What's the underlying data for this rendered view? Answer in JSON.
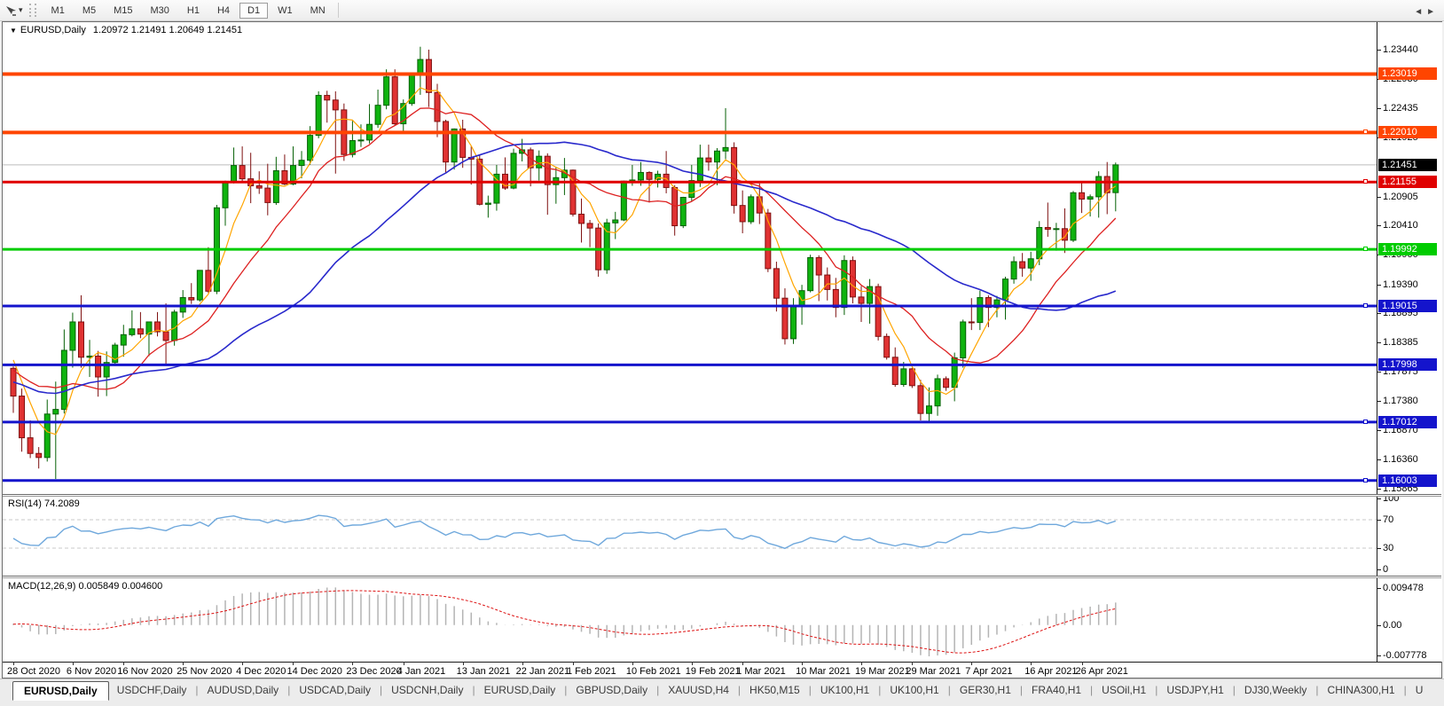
{
  "toolbar": {
    "dropdown_icon": "▾",
    "timeframes": [
      {
        "label": "M1",
        "active": false
      },
      {
        "label": "M5",
        "active": false
      },
      {
        "label": "M15",
        "active": false
      },
      {
        "label": "M30",
        "active": false
      },
      {
        "label": "H1",
        "active": false
      },
      {
        "label": "H4",
        "active": false
      },
      {
        "label": "D1",
        "active": true
      },
      {
        "label": "W1",
        "active": false
      },
      {
        "label": "MN",
        "active": false
      }
    ]
  },
  "chart": {
    "title": {
      "collapse_icon": "▼",
      "symbol": "EURUSD,Daily",
      "ohlc_values": "1.20972 1.21491 1.20649 1.21451"
    }
  },
  "chart_data": {
    "type": "candlestick",
    "symbol": "EURUSD",
    "timeframe": "Daily",
    "title": "EURUSD,Daily",
    "ohlc_display": {
      "open": "1.20972",
      "high": "1.21491",
      "low": "1.20649",
      "close": "1.21451"
    },
    "style": {
      "up_fill": "#0fb30f",
      "up_stroke": "#056005",
      "down_fill": "#e03232",
      "down_stroke": "#7d0f0f",
      "current_line": "#bcbcbc",
      "grid_dash": "#c8c8c8",
      "macd_bar": "#b4b4b4",
      "macd_signal": "#dd1111",
      "rsi_line": "#6fa8dc"
    },
    "prehistory_closes": [
      1.188,
      1.1858,
      1.184,
      1.1823,
      1.185,
      1.187,
      1.19,
      1.1935,
      1.1915,
      1.185,
      1.182,
      1.18,
      1.184,
      1.186,
      1.1845,
      1.179,
      1.1745,
      1.1712,
      1.168,
      1.163,
      1.1665,
      1.17,
      1.172,
      1.174,
      1.1715,
      1.173,
      1.1765,
      1.179,
      1.181,
      1.1785,
      1.176,
      1.177,
      1.18,
      1.183,
      1.181,
      1.177,
      1.174,
      1.172,
      1.175,
      1.1785,
      1.182,
      1.184,
      1.186,
      1.183,
      1.181,
      1.1795
    ],
    "candles": [
      [
        1.1794,
        1.1797,
        1.1717,
        1.1746
      ],
      [
        1.1746,
        1.1759,
        1.165,
        1.1674
      ],
      [
        1.1674,
        1.1704,
        1.1639,
        1.1647
      ],
      [
        1.1647,
        1.1658,
        1.1621,
        1.164
      ],
      [
        1.164,
        1.174,
        1.1633,
        1.1715
      ],
      [
        1.1715,
        1.1771,
        1.1603,
        1.1723
      ],
      [
        1.1723,
        1.1861,
        1.1716,
        1.1825
      ],
      [
        1.1825,
        1.189,
        1.1795,
        1.1874
      ],
      [
        1.1874,
        1.192,
        1.1795,
        1.1813
      ],
      [
        1.1813,
        1.1843,
        1.1779,
        1.1815
      ],
      [
        1.1815,
        1.1824,
        1.1745,
        1.1779
      ],
      [
        1.1779,
        1.1823,
        1.1746,
        1.1804
      ],
      [
        1.1804,
        1.1838,
        1.1799,
        1.1834
      ],
      [
        1.1834,
        1.1869,
        1.1814,
        1.1852
      ],
      [
        1.1852,
        1.1894,
        1.1849,
        1.1862
      ],
      [
        1.1862,
        1.1891,
        1.1846,
        1.1853
      ],
      [
        1.1853,
        1.1874,
        1.1815,
        1.1874
      ],
      [
        1.1874,
        1.1891,
        1.1849,
        1.1857
      ],
      [
        1.1857,
        1.1906,
        1.18,
        1.1842
      ],
      [
        1.1842,
        1.1895,
        1.1833,
        1.1891
      ],
      [
        1.1891,
        1.1929,
        1.1881,
        1.1916
      ],
      [
        1.1916,
        1.1941,
        1.1905,
        1.1912
      ],
      [
        1.1912,
        1.1963,
        1.1909,
        1.1963
      ],
      [
        1.1963,
        1.2003,
        1.1924,
        1.1927
      ],
      [
        1.1927,
        1.2076,
        1.1922,
        1.2071
      ],
      [
        1.2071,
        1.2118,
        1.204,
        1.2115
      ],
      [
        1.2115,
        1.2175,
        1.2113,
        1.2144
      ],
      [
        1.2144,
        1.2177,
        1.2117,
        1.2121
      ],
      [
        1.2121,
        1.2166,
        1.2079,
        1.2109
      ],
      [
        1.2109,
        1.2134,
        1.2095,
        1.2105
      ],
      [
        1.2105,
        1.2147,
        1.2058,
        1.208
      ],
      [
        1.208,
        1.2159,
        1.2076,
        1.2135
      ],
      [
        1.2135,
        1.2163,
        1.211,
        1.2112
      ],
      [
        1.2112,
        1.2177,
        1.211,
        1.2144
      ],
      [
        1.2144,
        1.2169,
        1.2122,
        1.2153
      ],
      [
        1.2153,
        1.2212,
        1.2145,
        1.2196
      ],
      [
        1.2196,
        1.2272,
        1.2191,
        1.2265
      ],
      [
        1.2265,
        1.2273,
        1.2218,
        1.2257
      ],
      [
        1.2257,
        1.2272,
        1.213,
        1.224
      ],
      [
        1.224,
        1.2251,
        1.2152,
        1.2163
      ],
      [
        1.2163,
        1.2221,
        1.2158,
        1.2187
      ],
      [
        1.2187,
        1.2215,
        1.2176,
        1.2188
      ],
      [
        1.2188,
        1.225,
        1.2182,
        1.2215
      ],
      [
        1.2215,
        1.2275,
        1.2209,
        1.2248
      ],
      [
        1.2248,
        1.231,
        1.2241,
        1.2297
      ],
      [
        1.2297,
        1.231,
        1.2213,
        1.2216
      ],
      [
        1.2216,
        1.2258,
        1.2203,
        1.2251
      ],
      [
        1.2251,
        1.2303,
        1.2247,
        1.23
      ],
      [
        1.23,
        1.2349,
        1.2266,
        1.2327
      ],
      [
        1.2327,
        1.2344,
        1.2245,
        1.227
      ],
      [
        1.227,
        1.2285,
        1.2193,
        1.222
      ],
      [
        1.222,
        1.2223,
        1.2132,
        1.215
      ],
      [
        1.215,
        1.2208,
        1.2137,
        1.2207
      ],
      [
        1.2207,
        1.2223,
        1.214,
        1.2158
      ],
      [
        1.2158,
        1.2177,
        1.2111,
        1.2155
      ],
      [
        1.2155,
        1.2163,
        1.2075,
        1.2077
      ],
      [
        1.2077,
        1.2092,
        1.2054,
        1.2079
      ],
      [
        1.2079,
        1.2145,
        1.2066,
        1.2129
      ],
      [
        1.2129,
        1.2158,
        1.2102,
        1.2105
      ],
      [
        1.2105,
        1.2173,
        1.2103,
        1.2165
      ],
      [
        1.2165,
        1.219,
        1.2151,
        1.2171
      ],
      [
        1.2171,
        1.2175,
        1.2108,
        1.214
      ],
      [
        1.214,
        1.217,
        1.2118,
        1.216
      ],
      [
        1.216,
        1.2165,
        1.2059,
        1.2111
      ],
      [
        1.2111,
        1.2142,
        1.2078,
        1.2123
      ],
      [
        1.2123,
        1.2157,
        1.2093,
        1.2136
      ],
      [
        1.2136,
        1.2137,
        1.2056,
        1.206
      ],
      [
        1.206,
        1.2087,
        1.2011,
        1.2044
      ],
      [
        1.2044,
        1.205,
        1.2003,
        1.2036
      ],
      [
        1.2036,
        1.2044,
        1.1952,
        1.1964
      ],
      [
        1.1964,
        1.2052,
        1.1957,
        1.2045
      ],
      [
        1.2045,
        1.2064,
        1.2017,
        1.205
      ],
      [
        1.205,
        1.2118,
        1.2048,
        1.2117
      ],
      [
        1.2117,
        1.2145,
        1.2109,
        1.2119
      ],
      [
        1.2119,
        1.215,
        1.2109,
        1.2132
      ],
      [
        1.2132,
        1.2134,
        1.208,
        1.212
      ],
      [
        1.212,
        1.2135,
        1.2106,
        1.2129
      ],
      [
        1.2129,
        1.2169,
        1.2096,
        1.2106
      ],
      [
        1.2106,
        1.211,
        1.2023,
        1.204
      ],
      [
        1.204,
        1.209,
        1.2036,
        1.2089
      ],
      [
        1.2089,
        1.2145,
        1.2082,
        1.2118
      ],
      [
        1.2118,
        1.218,
        1.2107,
        1.2157
      ],
      [
        1.2157,
        1.218,
        1.2135,
        1.215
      ],
      [
        1.215,
        1.2174,
        1.211,
        1.2169
      ],
      [
        1.2169,
        1.2243,
        1.2155,
        1.2175
      ],
      [
        1.2175,
        1.2184,
        1.2061,
        1.2075
      ],
      [
        1.2075,
        1.2101,
        1.2027,
        1.2047
      ],
      [
        1.2047,
        1.2094,
        1.2043,
        1.209
      ],
      [
        1.209,
        1.2113,
        1.2043,
        1.2062
      ],
      [
        1.2062,
        1.2069,
        1.196,
        1.1966
      ],
      [
        1.1966,
        1.1978,
        1.1892,
        1.1915
      ],
      [
        1.1915,
        1.1932,
        1.1835,
        1.1845
      ],
      [
        1.1845,
        1.1915,
        1.1836,
        1.19
      ],
      [
        1.19,
        1.1938,
        1.1869,
        1.1928
      ],
      [
        1.1928,
        1.199,
        1.1925,
        1.1985
      ],
      [
        1.1985,
        1.1989,
        1.191,
        1.1955
      ],
      [
        1.1955,
        1.1968,
        1.1911,
        1.193
      ],
      [
        1.193,
        1.195,
        1.1882,
        1.1899
      ],
      [
        1.1899,
        1.1989,
        1.1886,
        1.198
      ],
      [
        1.198,
        1.1987,
        1.1906,
        1.1917
      ],
      [
        1.1917,
        1.1936,
        1.1874,
        1.1906
      ],
      [
        1.1906,
        1.1948,
        1.1871,
        1.1935
      ],
      [
        1.1935,
        1.194,
        1.1842,
        1.1849
      ],
      [
        1.1849,
        1.1854,
        1.1809,
        1.1813
      ],
      [
        1.1813,
        1.183,
        1.1762,
        1.1766
      ],
      [
        1.1766,
        1.1805,
        1.1762,
        1.1793
      ],
      [
        1.1793,
        1.1795,
        1.176,
        1.1764
      ],
      [
        1.1764,
        1.1774,
        1.1704,
        1.1716
      ],
      [
        1.1716,
        1.1761,
        1.1702,
        1.1729
      ],
      [
        1.1729,
        1.1783,
        1.1712,
        1.1776
      ],
      [
        1.1776,
        1.178,
        1.1755,
        1.1761
      ],
      [
        1.1761,
        1.1821,
        1.1737,
        1.1812
      ],
      [
        1.1812,
        1.1878,
        1.1795,
        1.1874
      ],
      [
        1.1874,
        1.1915,
        1.186,
        1.1873
      ],
      [
        1.1873,
        1.1928,
        1.186,
        1.1916
      ],
      [
        1.1916,
        1.192,
        1.1865,
        1.1899
      ],
      [
        1.1899,
        1.1919,
        1.1882,
        1.1912
      ],
      [
        1.1912,
        1.1952,
        1.1878,
        1.1948
      ],
      [
        1.1948,
        1.1987,
        1.194,
        1.1978
      ],
      [
        1.1978,
        1.1993,
        1.1952,
        1.1967
      ],
      [
        1.1967,
        1.1995,
        1.1945,
        1.1983
      ],
      [
        1.1983,
        1.2048,
        1.1972,
        1.2037
      ],
      [
        1.2037,
        1.208,
        1.2021,
        1.2034
      ],
      [
        1.2034,
        1.2045,
        1.1997,
        1.2035
      ],
      [
        1.2035,
        1.207,
        1.1993,
        1.2015
      ],
      [
        1.2015,
        1.21,
        1.2012,
        1.2097
      ],
      [
        1.2097,
        1.2117,
        1.2062,
        1.2086
      ],
      [
        1.2086,
        1.2094,
        1.2056,
        1.209
      ],
      [
        1.209,
        1.2134,
        1.2054,
        1.2125
      ],
      [
        1.2125,
        1.215,
        1.206,
        1.2097
      ],
      [
        1.20972,
        1.21491,
        1.20649,
        1.21451
      ]
    ],
    "date_ticks": [
      {
        "label": "28 Oct 2020",
        "index": 0
      },
      {
        "label": "6 Nov 2020",
        "index": 7
      },
      {
        "label": "16 Nov 2020",
        "index": 13
      },
      {
        "label": "25 Nov 2020",
        "index": 20
      },
      {
        "label": "4 Dec 2020",
        "index": 27
      },
      {
        "label": "14 Dec 2020",
        "index": 33
      },
      {
        "label": "23 Dec 2020",
        "index": 40
      },
      {
        "label": "4 Jan 2021",
        "index": 46
      },
      {
        "label": "13 Jan 2021",
        "index": 53
      },
      {
        "label": "22 Jan 2021",
        "index": 60
      },
      {
        "label": "1 Feb 2021",
        "index": 66
      },
      {
        "label": "10 Feb 2021",
        "index": 73
      },
      {
        "label": "19 Feb 2021",
        "index": 80
      },
      {
        "label": "1 Mar 2021",
        "index": 86
      },
      {
        "label": "10 Mar 2021",
        "index": 93
      },
      {
        "label": "19 Mar 2021",
        "index": 100
      },
      {
        "label": "29 Mar 2021",
        "index": 106
      },
      {
        "label": "7 Apr 2021",
        "index": 113
      },
      {
        "label": "16 Apr 2021",
        "index": 120
      },
      {
        "label": "26 Apr 2021",
        "index": 126
      }
    ],
    "price_ticks": [
      "1.23440",
      "1.22930",
      "1.22435",
      "1.21925",
      "1.20905",
      "1.20410",
      "1.19900",
      "1.19390",
      "1.18895",
      "1.18385",
      "1.17875",
      "1.17380",
      "1.16870",
      "1.16360",
      "1.15865"
    ],
    "hlines": [
      {
        "price": 1.23019,
        "label": "1.23019",
        "color": "#ff4500",
        "width": 4,
        "handle": false
      },
      {
        "price": 1.2201,
        "label": "1.22010",
        "color": "#ff4500",
        "width": 4,
        "handle": true
      },
      {
        "price": 1.21155,
        "label": "1.21155",
        "color": "#e00000",
        "width": 3,
        "handle": true
      },
      {
        "price": 1.19992,
        "label": "1.19992",
        "color": "#00cc00",
        "width": 3,
        "handle": true
      },
      {
        "price": 1.19015,
        "label": "1.19015",
        "color": "#1414cc",
        "width": 3,
        "handle": true
      },
      {
        "price": 1.17998,
        "label": "1.17998",
        "color": "#1414cc",
        "width": 3,
        "handle": false
      },
      {
        "price": 1.17012,
        "label": "1.17012",
        "color": "#1414cc",
        "width": 3,
        "handle": true
      },
      {
        "price": 1.16003,
        "label": "1.16003",
        "color": "#1414cc",
        "width": 3,
        "handle": true
      }
    ],
    "current_price": {
      "price": 1.21451,
      "label": "1.21451",
      "badge_color": "#000000"
    },
    "indicators": {
      "moving_averages": [
        {
          "period": 5,
          "color": "#ffa500",
          "width": 1.2
        },
        {
          "period": 13,
          "color": "#dd2020",
          "width": 1.3
        },
        {
          "period": 35,
          "color": "#2929cc",
          "width": 1.6
        }
      ],
      "rsi": {
        "label": "RSI(14) 74.2089",
        "period": 14,
        "last_value": 74.2089,
        "axis": [
          {
            "label": "100",
            "value": 100
          },
          {
            "label": "70",
            "value": 70
          },
          {
            "label": "30",
            "value": 30
          },
          {
            "label": "0",
            "value": 0
          }
        ],
        "dashed_levels": [
          70,
          30
        ]
      },
      "macd": {
        "label": "MACD(12,26,9) 0.005849 0.004600",
        "fast": 12,
        "slow": 26,
        "signal": 9,
        "last_main": 0.005849,
        "last_signal": 0.0046,
        "axis": [
          {
            "label": "0.009478",
            "value": 0.009478
          },
          {
            "label": "0.00",
            "value": 0
          },
          {
            "label": "-0.007778",
            "value": -0.007778
          }
        ]
      }
    }
  },
  "tabs": {
    "scroll_left": "◄",
    "scroll_right": "►",
    "items": [
      {
        "label": "EURUSD,Daily",
        "active": true
      },
      {
        "label": "USDCHF,Daily",
        "active": false
      },
      {
        "label": "AUDUSD,Daily",
        "active": false
      },
      {
        "label": "USDCAD,Daily",
        "active": false
      },
      {
        "label": "USDCNH,Daily",
        "active": false
      },
      {
        "label": "EURUSD,Daily",
        "active": false
      },
      {
        "label": "GBPUSD,Daily",
        "active": false
      },
      {
        "label": "XAUUSD,H4",
        "active": false
      },
      {
        "label": "HK50,M15",
        "active": false
      },
      {
        "label": "UK100,H1",
        "active": false
      },
      {
        "label": "UK100,H1",
        "active": false
      },
      {
        "label": "GER30,H1",
        "active": false
      },
      {
        "label": "FRA40,H1",
        "active": false
      },
      {
        "label": "USOil,H1",
        "active": false
      },
      {
        "label": "USDJPY,H1",
        "active": false
      },
      {
        "label": "DJ30,Weekly",
        "active": false
      },
      {
        "label": "CHINA300,H1",
        "active": false
      },
      {
        "label": "U",
        "active": false
      }
    ]
  }
}
